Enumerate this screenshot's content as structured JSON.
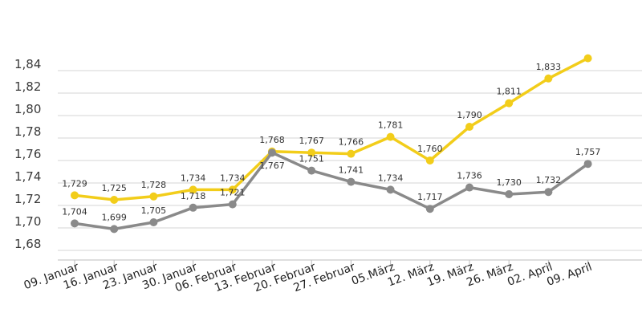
{
  "chart_data": {
    "type": "line",
    "title": "",
    "xlabel": "",
    "ylabel": "",
    "ylim": [
      1.68,
      1.85
    ],
    "yticks": [
      "1,68",
      "1,70",
      "1,72",
      "1,74",
      "1,76",
      "1,78",
      "1,80",
      "1,82",
      "1,84"
    ],
    "grid": true,
    "categories": [
      "09. Januar",
      "16. Januar",
      "23. Januar",
      "30. Januar",
      "06. Februar",
      "13. Februar",
      "20. Februar",
      "27. Februar",
      "05.März",
      "12. März",
      "19. März",
      "26. März",
      "02. April",
      "09. April"
    ],
    "series": [
      {
        "name": "yellow",
        "color": "#f2cd1a",
        "values": [
          1.729,
          1.725,
          1.728,
          1.734,
          1.734,
          1.768,
          1.767,
          1.766,
          1.781,
          1.76,
          1.79,
          1.811,
          1.833,
          1.851
        ],
        "labels": [
          "1,729",
          "1,725",
          "1,728",
          "1,734",
          "1,734",
          "1,768",
          "1,767",
          "1,766",
          "1,781",
          "1,760",
          "1,790",
          "1,811",
          "1,833",
          null
        ]
      },
      {
        "name": "gray",
        "color": "#8a8a8a",
        "values": [
          1.704,
          1.699,
          1.705,
          1.718,
          1.721,
          1.767,
          1.751,
          1.741,
          1.734,
          1.717,
          1.736,
          1.73,
          1.732,
          1.757
        ],
        "labels": [
          "1,704",
          "1,699",
          "1,705",
          "1,718",
          "1,721",
          "1,767",
          "1,751",
          "1,741",
          "1,734",
          "1,717",
          "1,736",
          "1,730",
          "1,732",
          "1,757"
        ]
      }
    ]
  }
}
